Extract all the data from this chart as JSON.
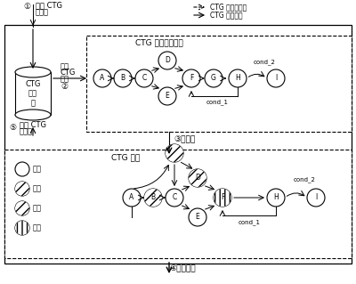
{
  "bg_color": "#ffffff",
  "legend_dashed": "CTG 模型库管理",
  "legend_solid": "CTG 模型重用",
  "step1_circ": "①",
  "step1_line1": "建立 CTG",
  "step1_line2": "模型库",
  "step2_line1": "选择",
  "step2_line2": "CTG",
  "step2_line3": "模型",
  "step2_circ": "②",
  "step3_label": "③｜定制",
  "step4_label": "④后续设计",
  "step5_circ": "⑤",
  "step5_line1": "优化 CTG",
  "step5_line2": "模型库",
  "db_line1": "CTG",
  "db_line2": "模型",
  "db_line3": "库",
  "template_title": "CTG 领域模型模板",
  "model_title": "CTG 模型",
  "legend_labels": [
    "不变",
    "修改",
    "添加",
    "删除"
  ],
  "cond_1": "cond_1",
  "cond_2": "cond_2"
}
